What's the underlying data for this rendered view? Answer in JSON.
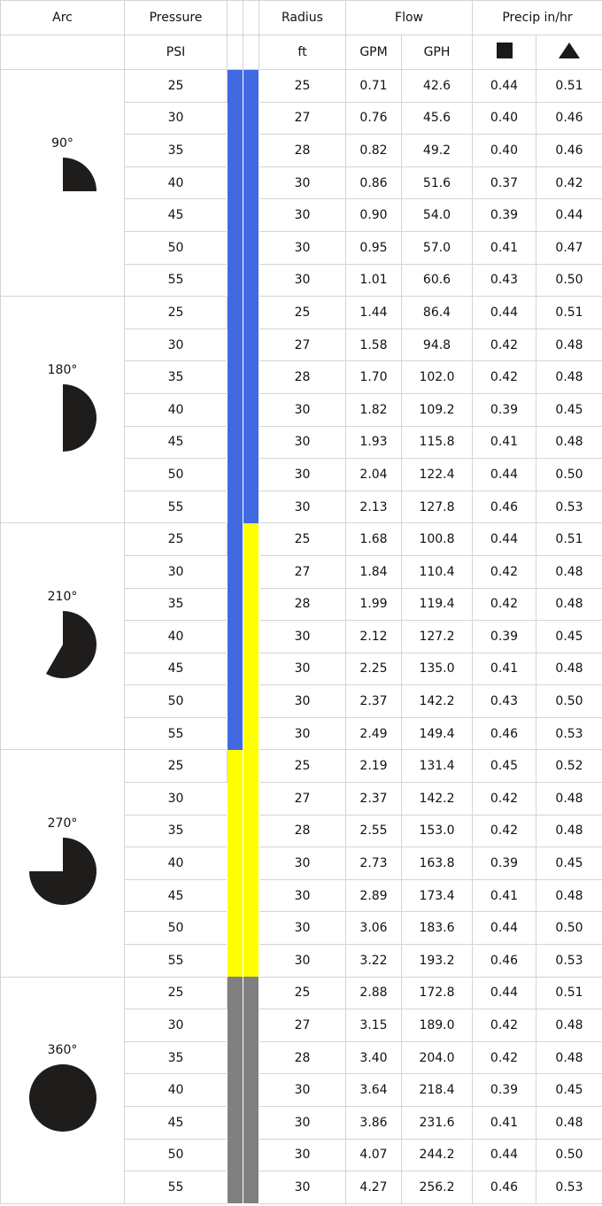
{
  "header": {
    "row1": [
      "Arc",
      "Pressure",
      "Radius",
      "Flow",
      "Precip in/hr"
    ],
    "row2": [
      "PSI",
      "ft",
      "GPM",
      "GPH"
    ]
  },
  "groups": [
    {
      "arc": "90°",
      "colors": [
        "#4169e1",
        "#4169e1"
      ],
      "rows": [
        [
          "25",
          "25",
          "0.71",
          "42.6",
          "0.44",
          "0.51"
        ],
        [
          "30",
          "27",
          "0.76",
          "45.6",
          "0.40",
          "0.46"
        ],
        [
          "35",
          "28",
          "0.82",
          "49.2",
          "0.40",
          "0.46"
        ],
        [
          "40",
          "30",
          "0.86",
          "51.6",
          "0.37",
          "0.42"
        ],
        [
          "45",
          "30",
          "0.90",
          "54.0",
          "0.39",
          "0.44"
        ],
        [
          "50",
          "30",
          "0.95",
          "57.0",
          "0.41",
          "0.47"
        ],
        [
          "55",
          "30",
          "1.01",
          "60.6",
          "0.43",
          "0.50"
        ]
      ]
    },
    {
      "arc": "180°",
      "colors": [
        "#4169e1",
        "#4169e1"
      ],
      "rows": [
        [
          "25",
          "25",
          "1.44",
          "86.4",
          "0.44",
          "0.51"
        ],
        [
          "30",
          "27",
          "1.58",
          "94.8",
          "0.42",
          "0.48"
        ],
        [
          "35",
          "28",
          "1.70",
          "102.0",
          "0.42",
          "0.48"
        ],
        [
          "40",
          "30",
          "1.82",
          "109.2",
          "0.39",
          "0.45"
        ],
        [
          "45",
          "30",
          "1.93",
          "115.8",
          "0.41",
          "0.48"
        ],
        [
          "50",
          "30",
          "2.04",
          "122.4",
          "0.44",
          "0.50"
        ],
        [
          "55",
          "30",
          "2.13",
          "127.8",
          "0.46",
          "0.53"
        ]
      ]
    },
    {
      "arc": "210°",
      "colors": [
        "#4169e1",
        "#ffff00"
      ],
      "rows": [
        [
          "25",
          "25",
          "1.68",
          "100.8",
          "0.44",
          "0.51"
        ],
        [
          "30",
          "27",
          "1.84",
          "110.4",
          "0.42",
          "0.48"
        ],
        [
          "35",
          "28",
          "1.99",
          "119.4",
          "0.42",
          "0.48"
        ],
        [
          "40",
          "30",
          "2.12",
          "127.2",
          "0.39",
          "0.45"
        ],
        [
          "45",
          "30",
          "2.25",
          "135.0",
          "0.41",
          "0.48"
        ],
        [
          "50",
          "30",
          "2.37",
          "142.2",
          "0.43",
          "0.50"
        ],
        [
          "55",
          "30",
          "2.49",
          "149.4",
          "0.46",
          "0.53"
        ]
      ]
    },
    {
      "arc": "270°",
      "colors": [
        "#ffff00",
        "#ffff00"
      ],
      "rows": [
        [
          "25",
          "25",
          "2.19",
          "131.4",
          "0.45",
          "0.52"
        ],
        [
          "30",
          "27",
          "2.37",
          "142.2",
          "0.42",
          "0.48"
        ],
        [
          "35",
          "28",
          "2.55",
          "153.0",
          "0.42",
          "0.48"
        ],
        [
          "40",
          "30",
          "2.73",
          "163.8",
          "0.39",
          "0.45"
        ],
        [
          "45",
          "30",
          "2.89",
          "173.4",
          "0.41",
          "0.48"
        ],
        [
          "50",
          "30",
          "3.06",
          "183.6",
          "0.44",
          "0.50"
        ],
        [
          "55",
          "30",
          "3.22",
          "193.2",
          "0.46",
          "0.53"
        ]
      ]
    },
    {
      "arc": "360°",
      "colors": [
        "#808080",
        "#808080"
      ],
      "rows": [
        [
          "25",
          "25",
          "2.88",
          "172.8",
          "0.44",
          "0.51"
        ],
        [
          "30",
          "27",
          "3.15",
          "189.0",
          "0.42",
          "0.48"
        ],
        [
          "35",
          "28",
          "3.40",
          "204.0",
          "0.42",
          "0.48"
        ],
        [
          "40",
          "30",
          "3.64",
          "218.4",
          "0.39",
          "0.45"
        ],
        [
          "45",
          "30",
          "3.86",
          "231.6",
          "0.41",
          "0.48"
        ],
        [
          "50",
          "30",
          "4.07",
          "244.2",
          "0.44",
          "0.50"
        ],
        [
          "55",
          "30",
          "4.27",
          "256.2",
          "0.46",
          "0.53"
        ]
      ]
    }
  ]
}
